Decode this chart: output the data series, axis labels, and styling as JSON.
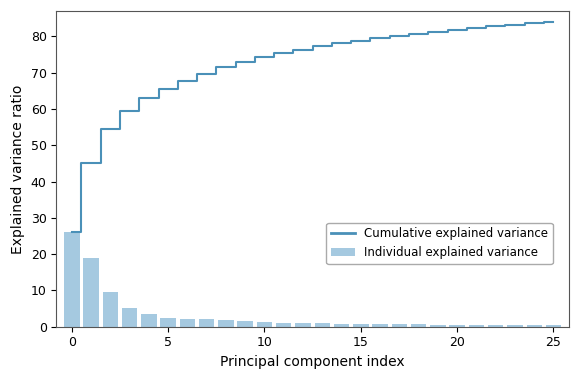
{
  "individual_variance": [
    26.0,
    19.0,
    9.5,
    5.0,
    3.5,
    2.5,
    2.2,
    2.0,
    1.8,
    1.5,
    1.3,
    1.1,
    1.0,
    0.9,
    0.8,
    0.75,
    0.7,
    0.65,
    0.6,
    0.55,
    0.5,
    0.48,
    0.45,
    0.42,
    0.4,
    0.38
  ],
  "cumulative_variance": [
    26.0,
    45.0,
    54.5,
    59.5,
    63.0,
    65.5,
    67.7,
    69.7,
    71.5,
    73.0,
    74.3,
    75.4,
    76.4,
    77.3,
    78.1,
    78.85,
    79.55,
    80.2,
    80.8,
    81.35,
    81.85,
    82.33,
    82.78,
    83.2,
    83.6,
    83.98
  ],
  "n_components": 26,
  "bar_color": "#7fb3d3",
  "line_color": "#4a90b8",
  "xlabel": "Principal component index",
  "ylabel": "Explained variance ratio",
  "legend_line": "Cumulative explained variance",
  "legend_bar": "Individual explained variance",
  "ylim_bottom": 0,
  "ylim_top": 87,
  "xlim_left": -0.8,
  "xlim_right": 25.8,
  "yticks": [
    0,
    10,
    20,
    30,
    40,
    50,
    60,
    70,
    80
  ],
  "xticks": [
    0,
    5,
    10,
    15,
    20,
    25
  ],
  "background_color": "#ffffff",
  "fig_width": 5.8,
  "fig_height": 3.8
}
